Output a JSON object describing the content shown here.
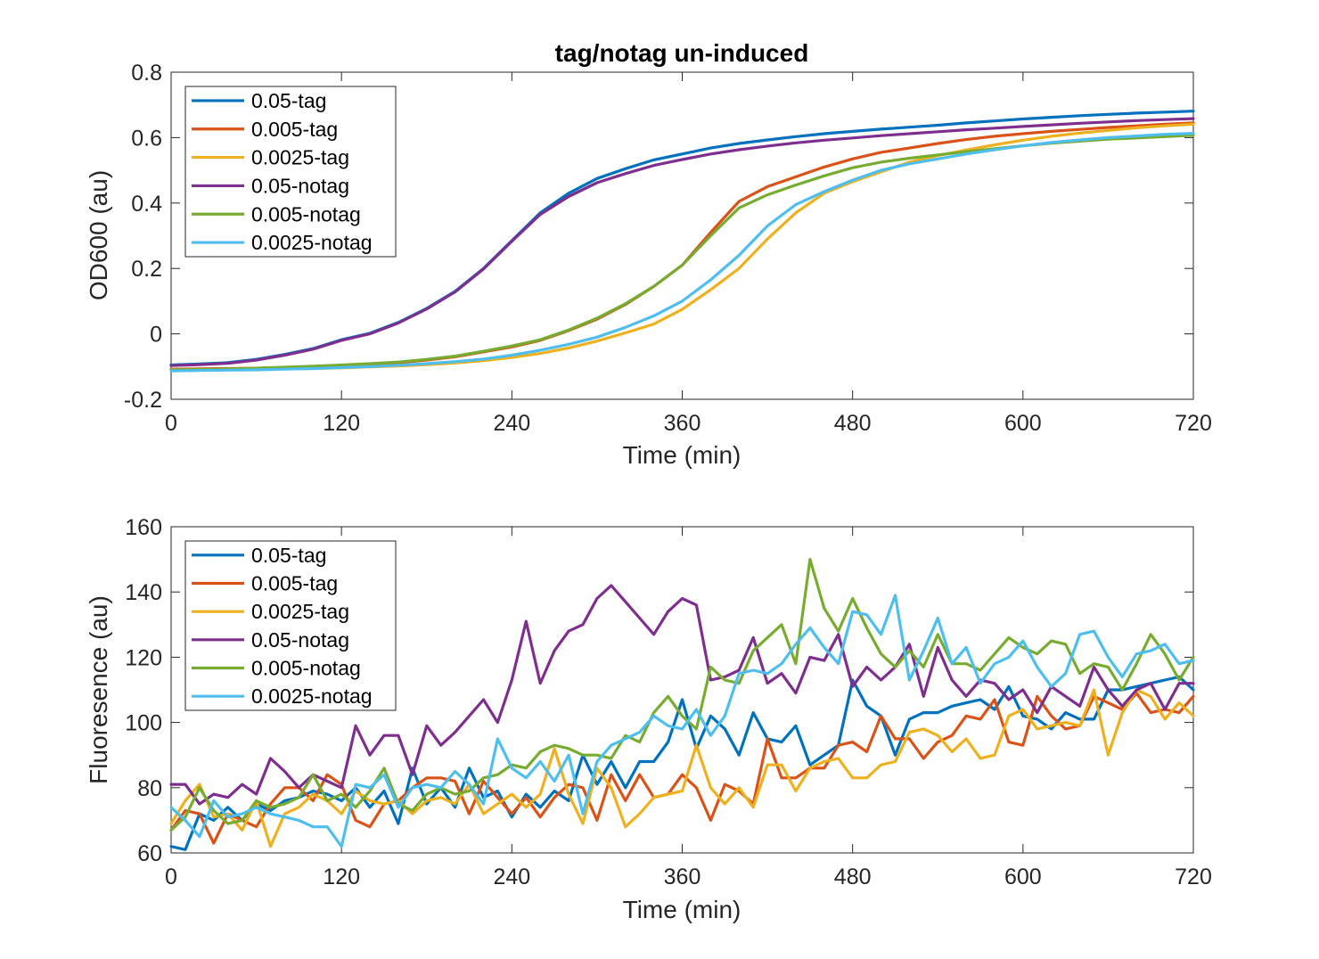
{
  "chart_data": [
    {
      "type": "line",
      "title": "tag/notag un-induced",
      "xlabel": "Time (min)",
      "ylabel": "OD600 (au)",
      "xlim": [
        0,
        720
      ],
      "ylim": [
        -0.2,
        0.8
      ],
      "xticks": [
        0,
        120,
        240,
        360,
        480,
        600,
        720
      ],
      "xtick_labels": [
        "0",
        "120",
        "240",
        "360",
        "480",
        "600",
        "720"
      ],
      "yticks": [
        -0.2,
        0,
        0.2,
        0.4,
        0.6,
        0.8
      ],
      "ytick_labels": [
        "-0.2",
        "0",
        "0.2",
        "0.4",
        "0.6",
        "0.8"
      ],
      "legend_position": "top-left",
      "grid": false,
      "x": [
        0,
        20,
        40,
        60,
        80,
        100,
        120,
        140,
        160,
        180,
        200,
        220,
        240,
        260,
        280,
        300,
        320,
        340,
        360,
        380,
        400,
        420,
        440,
        460,
        480,
        500,
        520,
        540,
        560,
        580,
        600,
        620,
        640,
        660,
        680,
        700,
        720
      ],
      "series": [
        {
          "name": "0.05-tag",
          "color": "#0072BD",
          "values": [
            -0.095,
            -0.092,
            -0.088,
            -0.078,
            -0.063,
            -0.045,
            -0.018,
            0.002,
            0.035,
            0.078,
            0.13,
            0.2,
            0.285,
            0.37,
            0.43,
            0.475,
            0.505,
            0.532,
            0.55,
            0.568,
            0.582,
            0.593,
            0.603,
            0.612,
            0.619,
            0.626,
            0.632,
            0.638,
            0.645,
            0.651,
            0.657,
            0.662,
            0.667,
            0.671,
            0.675,
            0.678,
            0.681
          ]
        },
        {
          "name": "0.005-tag",
          "color": "#D95319",
          "values": [
            -0.108,
            -0.107,
            -0.106,
            -0.105,
            -0.103,
            -0.1,
            -0.097,
            -0.093,
            -0.088,
            -0.08,
            -0.07,
            -0.055,
            -0.04,
            -0.02,
            0.01,
            0.045,
            0.09,
            0.145,
            0.21,
            0.31,
            0.405,
            0.45,
            0.48,
            0.51,
            0.535,
            0.555,
            0.568,
            0.582,
            0.594,
            0.604,
            0.612,
            0.619,
            0.625,
            0.631,
            0.636,
            0.641,
            0.645
          ]
        },
        {
          "name": "0.0025-tag",
          "color": "#EDB120",
          "values": [
            -0.11,
            -0.11,
            -0.109,
            -0.108,
            -0.107,
            -0.106,
            -0.104,
            -0.101,
            -0.098,
            -0.094,
            -0.089,
            -0.082,
            -0.072,
            -0.06,
            -0.043,
            -0.022,
            0.003,
            0.03,
            0.075,
            0.135,
            0.2,
            0.29,
            0.37,
            0.43,
            0.465,
            0.495,
            0.525,
            0.545,
            0.562,
            0.578,
            0.592,
            0.604,
            0.614,
            0.622,
            0.63,
            0.636,
            0.641
          ]
        },
        {
          "name": "0.05-notag",
          "color": "#7E2F8E",
          "values": [
            -0.097,
            -0.094,
            -0.09,
            -0.08,
            -0.065,
            -0.047,
            -0.02,
            0.0,
            0.033,
            0.076,
            0.128,
            0.198,
            0.283,
            0.365,
            0.42,
            0.462,
            0.49,
            0.515,
            0.533,
            0.55,
            0.563,
            0.574,
            0.584,
            0.592,
            0.599,
            0.606,
            0.612,
            0.618,
            0.624,
            0.629,
            0.634,
            0.639,
            0.644,
            0.648,
            0.652,
            0.655,
            0.658
          ]
        },
        {
          "name": "0.005-notag",
          "color": "#77AC30",
          "values": [
            -0.11,
            -0.109,
            -0.107,
            -0.105,
            -0.102,
            -0.099,
            -0.095,
            -0.091,
            -0.086,
            -0.078,
            -0.068,
            -0.053,
            -0.037,
            -0.018,
            0.012,
            0.048,
            0.092,
            0.145,
            0.21,
            0.3,
            0.385,
            0.425,
            0.455,
            0.483,
            0.508,
            0.525,
            0.537,
            0.547,
            0.557,
            0.566,
            0.575,
            0.583,
            0.589,
            0.595,
            0.599,
            0.603,
            0.607
          ]
        },
        {
          "name": "0.0025-notag",
          "color": "#4DBEEE",
          "values": [
            -0.113,
            -0.112,
            -0.111,
            -0.11,
            -0.108,
            -0.106,
            -0.103,
            -0.1,
            -0.096,
            -0.091,
            -0.085,
            -0.077,
            -0.065,
            -0.05,
            -0.032,
            -0.01,
            0.02,
            0.055,
            0.1,
            0.165,
            0.24,
            0.33,
            0.395,
            0.435,
            0.47,
            0.5,
            0.52,
            0.535,
            0.55,
            0.563,
            0.575,
            0.585,
            0.593,
            0.6,
            0.605,
            0.61,
            0.613
          ]
        }
      ]
    },
    {
      "type": "line",
      "title": "",
      "xlabel": "Time (min)",
      "ylabel": "Fluoresence (au)",
      "xlim": [
        0,
        720
      ],
      "ylim": [
        60,
        160
      ],
      "xticks": [
        0,
        120,
        240,
        360,
        480,
        600,
        720
      ],
      "xtick_labels": [
        "0",
        "120",
        "240",
        "360",
        "480",
        "600",
        "720"
      ],
      "yticks": [
        60,
        80,
        100,
        120,
        140,
        160
      ],
      "ytick_labels": [
        "60",
        "80",
        "100",
        "120",
        "140",
        "160"
      ],
      "legend_position": "top-left",
      "grid": false,
      "x": [
        0,
        10,
        20,
        30,
        40,
        50,
        60,
        70,
        80,
        90,
        100,
        110,
        120,
        130,
        140,
        150,
        160,
        170,
        180,
        190,
        200,
        210,
        220,
        230,
        240,
        250,
        260,
        270,
        280,
        290,
        300,
        310,
        320,
        330,
        340,
        350,
        360,
        370,
        380,
        390,
        400,
        410,
        420,
        430,
        440,
        450,
        460,
        470,
        480,
        490,
        500,
        510,
        520,
        530,
        540,
        550,
        560,
        570,
        580,
        590,
        600,
        610,
        620,
        630,
        640,
        650,
        660,
        670,
        680,
        690,
        700,
        710,
        720
      ],
      "series": [
        {
          "name": "0.05-tag",
          "color": "#0072BD",
          "values": [
            62,
            61,
            72,
            70,
            74,
            70,
            75,
            73,
            76,
            77,
            79,
            78,
            76,
            80,
            74,
            79,
            69,
            86,
            75,
            80,
            74,
            86,
            77,
            79,
            71,
            78,
            74,
            79,
            76,
            90,
            81,
            88,
            80,
            88,
            88,
            94,
            107,
            92,
            102,
            98,
            90,
            103,
            95,
            94,
            99,
            87,
            90,
            93,
            113,
            105,
            102,
            90,
            101,
            103,
            103,
            105,
            106,
            107,
            104,
            111,
            102,
            101,
            98,
            103,
            101,
            101,
            110,
            110,
            111,
            112,
            113,
            114,
            110
          ]
        },
        {
          "name": "0.005-tag",
          "color": "#D95319",
          "values": [
            67,
            73,
            72,
            63,
            72,
            70,
            68,
            75,
            80,
            80,
            76,
            84,
            81,
            70,
            68,
            75,
            76,
            80,
            83,
            83,
            82,
            72,
            82,
            77,
            72,
            77,
            71,
            77,
            81,
            80,
            70,
            84,
            76,
            84,
            77,
            78,
            84,
            80,
            70,
            81,
            79,
            75,
            95,
            83,
            83,
            86,
            86,
            93,
            94,
            91,
            102,
            95,
            95,
            89,
            94,
            96,
            102,
            101,
            107,
            94,
            93,
            108,
            102,
            98,
            99,
            108,
            106,
            104,
            109,
            103,
            104,
            103,
            108
          ]
        },
        {
          "name": "0.0025-tag",
          "color": "#EDB120",
          "values": [
            69,
            76,
            81,
            71,
            72,
            67,
            76,
            62,
            72,
            74,
            78,
            76,
            72,
            79,
            76,
            75,
            76,
            72,
            76,
            77,
            75,
            81,
            72,
            75,
            78,
            74,
            78,
            92,
            78,
            69,
            86,
            80,
            68,
            72,
            77,
            78,
            79,
            93,
            80,
            75,
            80,
            74,
            87,
            87,
            79,
            86,
            88,
            89,
            83,
            83,
            87,
            88,
            97,
            98,
            96,
            91,
            95,
            89,
            90,
            102,
            104,
            98,
            99,
            100,
            99,
            110,
            90,
            103,
            110,
            108,
            101,
            106,
            102
          ]
        },
        {
          "name": "0.05-notag",
          "color": "#7E2F8E",
          "values": [
            81,
            81,
            75,
            78,
            77,
            81,
            78,
            89,
            85,
            80,
            84,
            82,
            80,
            99,
            90,
            96,
            96,
            84,
            99,
            93,
            97,
            102,
            107,
            100,
            113,
            131,
            112,
            122,
            128,
            130,
            138,
            142,
            137,
            132,
            127,
            134,
            138,
            136,
            113,
            114,
            116,
            126,
            112,
            115,
            109,
            120,
            119,
            127,
            111,
            117,
            113,
            117,
            124,
            108,
            123,
            113,
            108,
            113,
            112,
            107,
            110,
            103,
            111,
            108,
            105,
            117,
            110,
            105,
            110,
            112,
            104,
            112,
            112
          ]
        },
        {
          "name": "0.005-notag",
          "color": "#77AC30",
          "values": [
            67,
            71,
            80,
            73,
            69,
            70,
            76,
            74,
            75,
            77,
            84,
            76,
            78,
            74,
            79,
            86,
            75,
            73,
            78,
            80,
            78,
            79,
            83,
            84,
            87,
            86,
            91,
            93,
            92,
            90,
            90,
            89,
            96,
            94,
            103,
            108,
            102,
            98,
            117,
            113,
            112,
            122,
            126,
            130,
            118,
            150,
            135,
            128,
            138,
            129,
            121,
            117,
            122,
            117,
            127,
            118,
            118,
            116,
            121,
            126,
            123,
            121,
            125,
            124,
            115,
            118,
            117,
            110,
            118,
            127,
            121,
            113,
            120
          ]
        },
        {
          "name": "0.0025-notag",
          "color": "#4DBEEE",
          "values": [
            74,
            70,
            65,
            76,
            71,
            72,
            74,
            72,
            71,
            70,
            68,
            68,
            62,
            81,
            80,
            84,
            74,
            80,
            81,
            80,
            85,
            81,
            75,
            95,
            86,
            83,
            88,
            82,
            90,
            72,
            88,
            93,
            95,
            97,
            102,
            99,
            98,
            104,
            96,
            102,
            115,
            116,
            115,
            118,
            124,
            129,
            123,
            118,
            134,
            133,
            127,
            139,
            113,
            122,
            132,
            118,
            123,
            112,
            118,
            120,
            125,
            117,
            111,
            115,
            127,
            128,
            120,
            114,
            121,
            122,
            124,
            118,
            119
          ]
        }
      ]
    }
  ]
}
